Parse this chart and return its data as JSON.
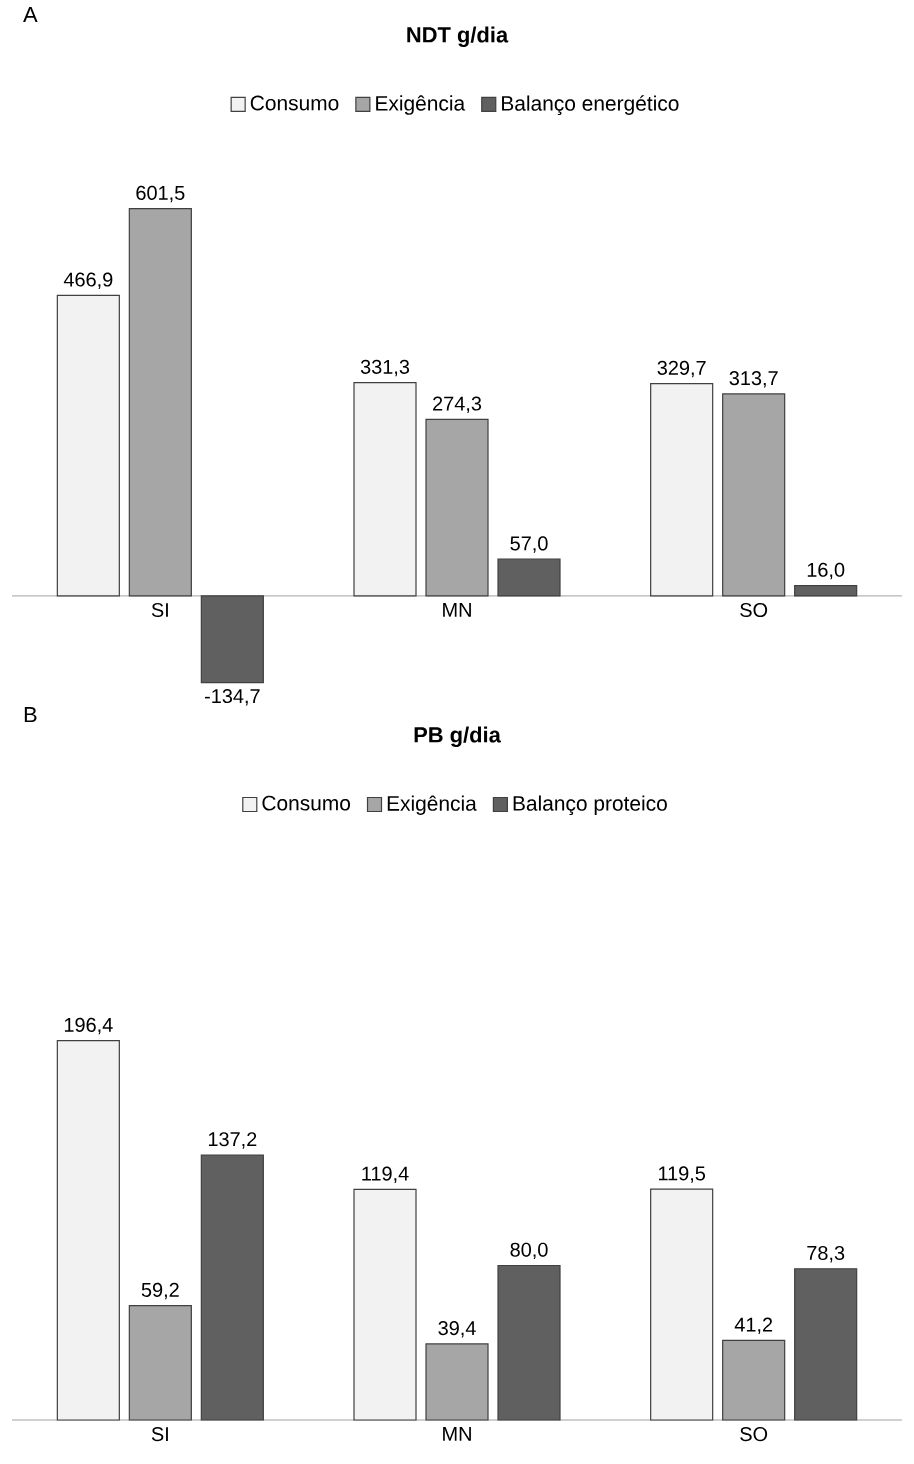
{
  "chart_data": [
    {
      "type": "bar",
      "title": "NDT g/dia",
      "annotations": [
        "A"
      ],
      "categories": [
        "SI",
        "MN",
        "SO"
      ],
      "legend": "top",
      "series": [
        {
          "name": "Consumo",
          "color": "#f2f2f2",
          "values": [
            466.9,
            331.3,
            329.7
          ],
          "value_labels": [
            "466,9",
            "331,3",
            "329,7"
          ]
        },
        {
          "name": "Exigência",
          "color": "#a6a6a6",
          "values": [
            601.5,
            274.3,
            313.7
          ],
          "value_labels": [
            "601,5",
            "274,3",
            "313,7"
          ]
        },
        {
          "name": "Balanço energético",
          "color": "#606060",
          "values": [
            -134.7,
            57.0,
            16.0
          ],
          "value_labels": [
            "-134,7",
            "57,0",
            "16,0"
          ]
        }
      ]
    },
    {
      "type": "bar",
      "title": "PB g/dia",
      "annotations": [
        "B"
      ],
      "categories": [
        "SI",
        "MN",
        "SO"
      ],
      "legend": "top",
      "series": [
        {
          "name": "Consumo",
          "color": "#f2f2f2",
          "values": [
            196.4,
            119.4,
            119.5
          ],
          "value_labels": [
            "196,4",
            "119,4",
            "119,5"
          ]
        },
        {
          "name": "Exigência",
          "color": "#a6a6a6",
          "values": [
            59.2,
            39.4,
            41.2
          ],
          "value_labels": [
            "59,2",
            "39,4",
            "41,2"
          ]
        },
        {
          "name": "Balanço proteico",
          "color": "#606060",
          "values": [
            137.2,
            80.0,
            78.3
          ],
          "value_labels": [
            "137,2",
            "80,0",
            "78,3"
          ]
        }
      ]
    }
  ]
}
